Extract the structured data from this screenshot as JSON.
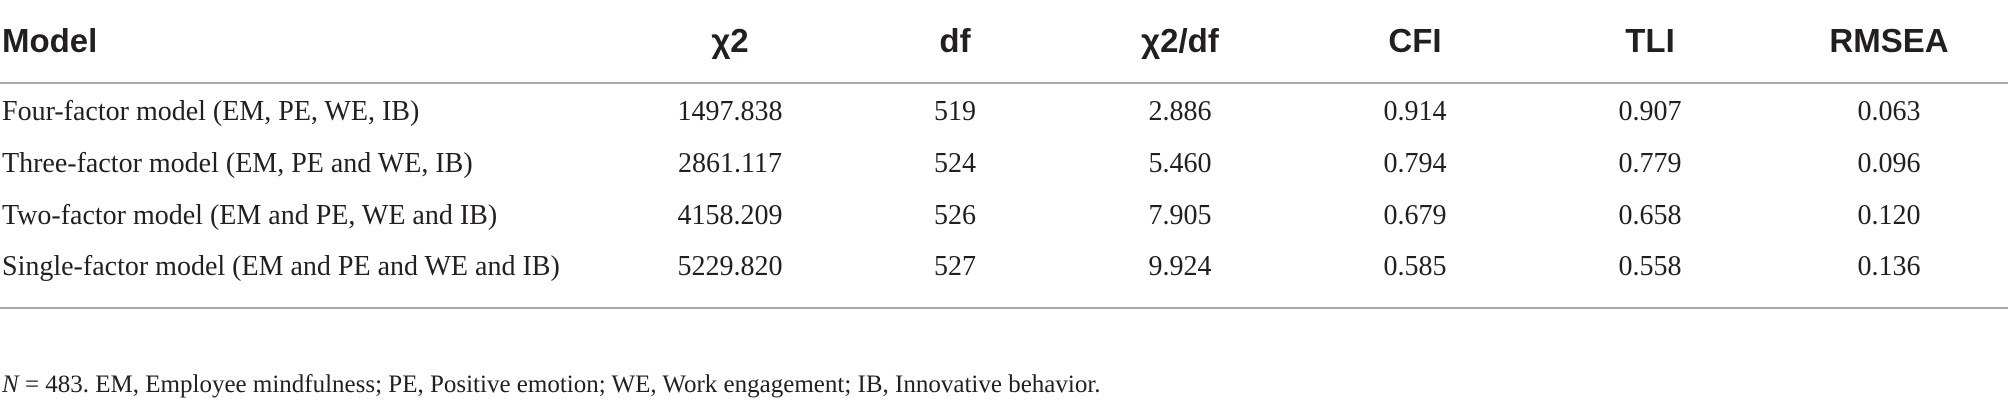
{
  "table": {
    "columns": [
      "Model",
      "χ2",
      "df",
      "χ2/df",
      "CFI",
      "TLI",
      "RMSEA"
    ],
    "rows": [
      [
        "Four-factor model (EM, PE, WE, IB)",
        "1497.838",
        "519",
        "2.886",
        "0.914",
        "0.907",
        "0.063"
      ],
      [
        "Three-factor model (EM, PE and WE, IB)",
        "2861.117",
        "524",
        "5.460",
        "0.794",
        "0.779",
        "0.096"
      ],
      [
        "Two-factor model (EM and PE, WE and IB)",
        "4158.209",
        "526",
        "7.905",
        "0.679",
        "0.658",
        "0.120"
      ],
      [
        "Single-factor model (EM and PE and WE and IB)",
        "5229.820",
        "527",
        "9.924",
        "0.585",
        "0.558",
        "0.136"
      ]
    ]
  },
  "footnote": {
    "n_label": "N",
    "text": " = 483. EM, Employee mindfulness; PE, Positive emotion; WE, Work engagement; IB, Innovative behavior."
  }
}
